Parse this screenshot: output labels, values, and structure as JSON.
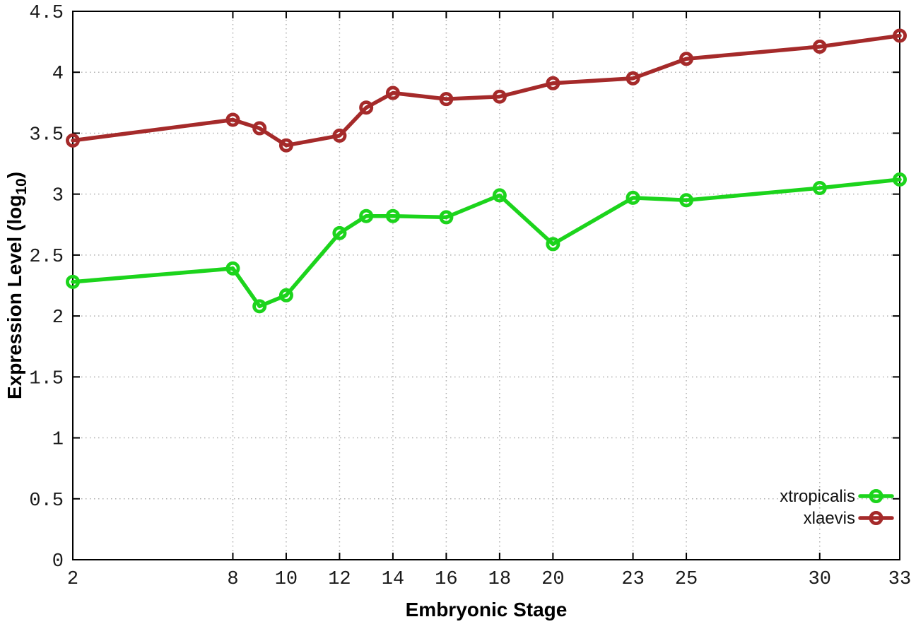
{
  "page": {
    "background": "#ffffff"
  },
  "chart_data": {
    "type": "line",
    "title": "",
    "xlabel": "Embryonic Stage",
    "ylabel_main": "Expression Level (log",
    "ylabel_sub": "10",
    "ylabel_end": ")",
    "xlim": [
      2,
      33
    ],
    "ylim": [
      0,
      4.5
    ],
    "x_ticks": [
      2,
      8,
      10,
      12,
      14,
      16,
      18,
      20,
      23,
      25,
      30,
      33
    ],
    "y_ticks": [
      "0",
      "0.5",
      "1",
      "1.5",
      "2",
      "2.5",
      "3",
      "3.5",
      "4",
      "4.5"
    ],
    "grid": true,
    "grid_style": "dotted",
    "legend_position": "inside-bottom-right",
    "axis_color": "#000000",
    "grid_color": "#b0b0b0",
    "tick_label_color": "#1a1a1a",
    "x": [
      2,
      8,
      9,
      10,
      12,
      13,
      14,
      16,
      18,
      20,
      23,
      25,
      30,
      33
    ],
    "series": [
      {
        "name": "xtropicalis",
        "color": "#1cd41c",
        "marker": "open-circle",
        "values": [
          2.28,
          2.39,
          2.08,
          2.17,
          2.68,
          2.82,
          2.82,
          2.81,
          2.99,
          2.59,
          2.97,
          2.95,
          3.05,
          3.12
        ]
      },
      {
        "name": "xlaevis",
        "color": "#a52a2a",
        "marker": "open-circle",
        "values": [
          3.44,
          3.61,
          3.54,
          3.4,
          3.48,
          3.71,
          3.83,
          3.78,
          3.8,
          3.91,
          3.95,
          4.11,
          4.21,
          4.3
        ]
      }
    ]
  }
}
